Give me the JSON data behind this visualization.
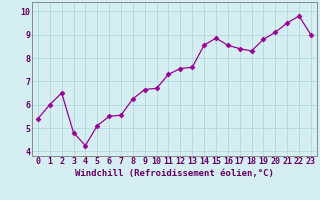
{
  "x": [
    0,
    1,
    2,
    3,
    4,
    5,
    6,
    7,
    8,
    9,
    10,
    11,
    12,
    13,
    14,
    15,
    16,
    17,
    18,
    19,
    20,
    21,
    22,
    23
  ],
  "y": [
    5.4,
    6.0,
    6.5,
    4.8,
    4.25,
    5.1,
    5.5,
    5.55,
    6.25,
    6.65,
    6.7,
    7.3,
    7.55,
    7.6,
    8.55,
    8.85,
    8.55,
    8.4,
    8.3,
    8.8,
    9.1,
    9.5,
    9.8,
    9.0
  ],
  "line_color": "#990099",
  "marker": "D",
  "marker_size": 2.5,
  "bg_color": "#d5eef2",
  "grid_color": "#b0d8e0",
  "xlabel": "Windchill (Refroidissement éolien,°C)",
  "xlabel_color": "#660066",
  "xlabel_fontsize": 6.5,
  "ylabel_ticks": [
    4,
    5,
    6,
    7,
    8,
    9,
    10
  ],
  "xtick_labels": [
    "0",
    "1",
    "2",
    "3",
    "4",
    "5",
    "6",
    "7",
    "8",
    "9",
    "10",
    "11",
    "12",
    "13",
    "14",
    "15",
    "16",
    "17",
    "18",
    "19",
    "20",
    "21",
    "22",
    "23"
  ],
  "ylim": [
    3.8,
    10.4
  ],
  "xlim": [
    -0.5,
    23.5
  ],
  "tick_fontsize": 6.0,
  "tick_color": "#660066",
  "spine_color": "#888888"
}
